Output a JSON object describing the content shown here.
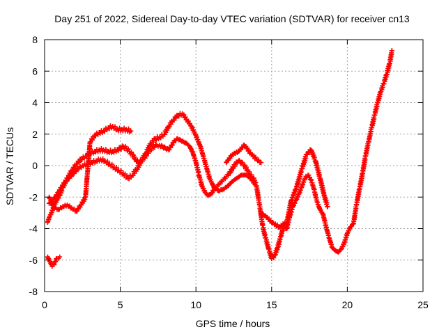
{
  "chart_data": {
    "type": "scatter",
    "title": "Day 251 of 2022, Sidereal Day-to-day VTEC variation (SDTVAR) for receiver cn13",
    "xlabel": "GPS time / hours",
    "ylabel": "SDTVAR / TECUs",
    "xlim": [
      0,
      25
    ],
    "ylim": [
      -8,
      8
    ],
    "xticks": [
      0,
      5,
      10,
      15,
      20,
      25
    ],
    "yticks": [
      -8,
      -6,
      -4,
      -2,
      0,
      2,
      4,
      6,
      8
    ],
    "grid": true,
    "marker": "plus",
    "color": "#ff0000",
    "series": [
      {
        "x": [
          0.2,
          0.3,
          0.45,
          0.6,
          0.8,
          1.0,
          1.2,
          1.5,
          1.8,
          2.1,
          2.4,
          2.7,
          3.0,
          3.3,
          3.6,
          3.9,
          4.2,
          4.5,
          4.8,
          5.0,
          5.2,
          5.4,
          5.6,
          5.8,
          6.0,
          6.2,
          6.4,
          6.6,
          6.8,
          7.0,
          7.2,
          7.4,
          7.6,
          7.8,
          8.0,
          8.2,
          8.4,
          8.6,
          8.8,
          9.0,
          9.2,
          9.4,
          9.6,
          9.8,
          10.0,
          10.2,
          10.4,
          10.6,
          10.8,
          11.0,
          11.2,
          11.4,
          11.6,
          11.8,
          12.0,
          12.2,
          12.4,
          12.6,
          12.8,
          13.0,
          13.2,
          13.4,
          13.6,
          13.8,
          14.0,
          14.2,
          14.4,
          14.6,
          14.8,
          15.0,
          15.2,
          15.4,
          15.6,
          15.8,
          16.0,
          16.2,
          16.4,
          16.6,
          16.8,
          17.0,
          17.2,
          17.4,
          17.6,
          17.8,
          18.0,
          18.2,
          18.4,
          18.6,
          18.8,
          19.0,
          19.2,
          19.4,
          19.6,
          19.8,
          20.0,
          20.2,
          20.4,
          20.6,
          20.8,
          21.0,
          21.2,
          21.4,
          21.6,
          21.8,
          22.0,
          22.2,
          22.4,
          22.6,
          22.8,
          22.95
        ],
        "y": [
          -3.6,
          -3.3,
          -3.0,
          -2.6,
          -2.2,
          -1.9,
          -1.4,
          -0.8,
          -0.3,
          0.1,
          0.4,
          0.6,
          0.8,
          0.9,
          1.0,
          1.0,
          0.9,
          0.9,
          1.0,
          1.1,
          1.2,
          1.1,
          0.9,
          0.7,
          0.4,
          0.2,
          0.3,
          0.5,
          0.8,
          1.0,
          1.2,
          1.3,
          1.3,
          1.2,
          1.1,
          1.0,
          1.3,
          1.6,
          1.7,
          1.6,
          1.5,
          1.4,
          1.2,
          0.8,
          0.2,
          -0.6,
          -1.3,
          -1.7,
          -1.9,
          -1.8,
          -1.5,
          -1.3,
          -1.1,
          -0.9,
          -0.7,
          -0.5,
          -0.2,
          0.1,
          0.3,
          0.2,
          0.0,
          -0.3,
          -0.6,
          -0.8,
          -1.3,
          -2.5,
          -3.8,
          -4.6,
          -5.3,
          -5.9,
          -5.7,
          -5.2,
          -4.5,
          -3.8,
          -4.0,
          -3.2,
          -2.6,
          -2.2,
          -1.8,
          -1.3,
          -0.8,
          -0.6,
          -0.9,
          -1.5,
          -2.3,
          -2.8,
          -3.1,
          -3.9,
          -4.6,
          -5.2,
          -5.4,
          -5.5,
          -5.3,
          -4.9,
          -4.3,
          -3.9,
          -3.7,
          -2.5,
          -1.5,
          -0.5,
          0.6,
          1.5,
          2.4,
          3.2,
          4.0,
          4.7,
          5.2,
          5.8,
          6.5,
          7.3
        ],
        "name": ""
      },
      {
        "x": [
          0.3,
          0.5,
          0.7,
          0.9,
          1.1,
          1.3,
          1.6,
          1.9,
          2.2,
          2.5,
          2.8,
          3.1,
          3.4,
          3.7,
          4.0,
          4.3,
          4.6,
          4.9,
          5.2,
          5.5,
          5.8,
          6.1,
          6.4,
          6.7,
          7.0,
          7.3,
          7.6,
          7.9,
          8.2,
          8.5,
          8.8,
          9.1,
          9.4,
          9.7,
          10.0,
          10.3,
          10.6,
          10.9,
          11.2,
          11.5,
          11.8,
          12.1,
          12.4,
          12.7,
          13.0,
          13.3,
          13.6,
          13.9
        ],
        "y": [
          -2.4,
          -2.2,
          -2.0,
          -1.7,
          -1.4,
          -1.1,
          -0.8,
          -0.5,
          -0.2,
          0.0,
          0.1,
          0.2,
          0.3,
          0.4,
          0.3,
          0.1,
          -0.1,
          -0.3,
          -0.5,
          -0.8,
          -0.6,
          -0.2,
          0.3,
          0.8,
          1.4,
          1.7,
          1.8,
          2.0,
          2.5,
          2.9,
          3.2,
          3.3,
          2.9,
          2.5,
          1.9,
          1.2,
          0.2,
          -0.8,
          -1.4,
          -1.6,
          -1.5,
          -1.3,
          -1.0,
          -0.8,
          -0.6,
          -0.6,
          -0.8,
          -1.2
        ],
        "name": ""
      },
      {
        "x": [
          0.3,
          0.6,
          0.9,
          1.2,
          1.5,
          1.8,
          2.1,
          2.4,
          2.7,
          3.0,
          3.3,
          3.6,
          3.9,
          4.2,
          4.5,
          4.8,
          5.1,
          5.4,
          5.7
        ],
        "y": [
          -2.0,
          -2.6,
          -2.8,
          -2.6,
          -2.5,
          -2.7,
          -2.9,
          -2.5,
          -2.0,
          1.5,
          1.9,
          2.1,
          2.2,
          2.4,
          2.5,
          2.3,
          2.3,
          2.3,
          2.2
        ],
        "name": ""
      },
      {
        "x": [
          0.2,
          0.3,
          0.4,
          0.5,
          0.6,
          0.7,
          0.8,
          0.9,
          1.0
        ],
        "y": [
          -5.8,
          -6.0,
          -6.2,
          -6.4,
          -6.3,
          -6.1,
          -5.9,
          -5.9,
          -5.8
        ],
        "name": ""
      },
      {
        "x": [
          12.0,
          12.4,
          12.8,
          13.2,
          13.6,
          14.0,
          14.3
        ],
        "y": [
          0.2,
          0.7,
          0.9,
          1.3,
          0.8,
          0.4,
          0.2
        ],
        "name": ""
      },
      {
        "x": [
          14.3,
          14.6,
          15.0,
          15.5,
          16.0,
          16.3,
          16.6,
          17.0,
          17.3,
          17.6,
          17.9,
          18.2,
          18.5,
          18.7
        ],
        "y": [
          -3.0,
          -3.2,
          -3.6,
          -3.9,
          -3.6,
          -2.2,
          -1.5,
          -0.2,
          0.7,
          1.0,
          0.3,
          -0.8,
          -2.0,
          -2.6
        ],
        "name": ""
      }
    ]
  }
}
